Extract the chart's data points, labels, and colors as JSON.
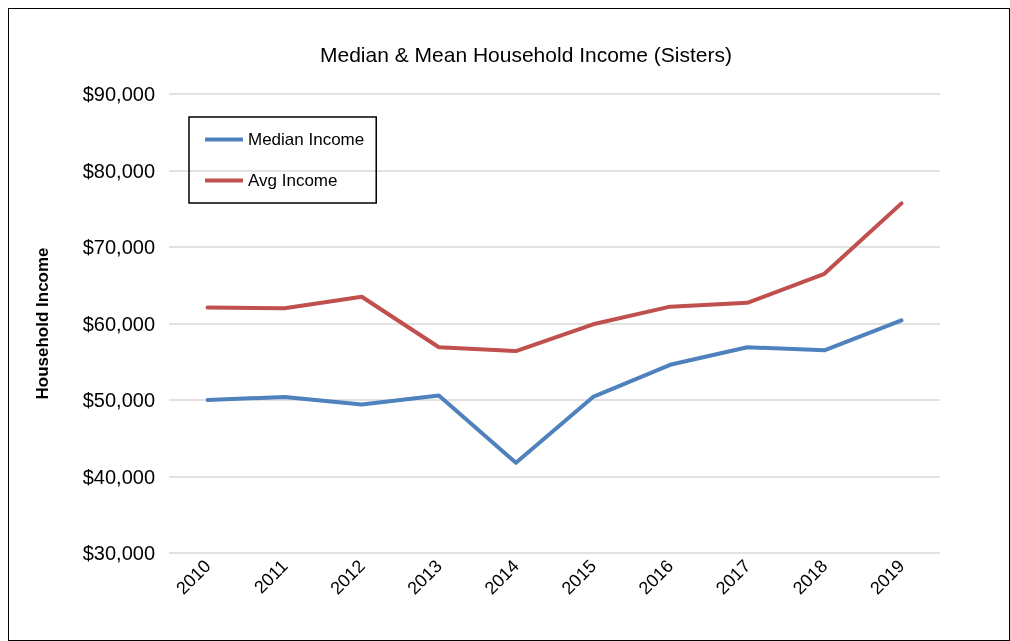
{
  "chart_data": {
    "type": "line",
    "title": "Median & Mean Household Income (Sisters)",
    "ylabel": "Household Income",
    "categories": [
      "2010",
      "2011",
      "2012",
      "2013",
      "2014",
      "2015",
      "2016",
      "2017",
      "2018",
      "2019"
    ],
    "series": [
      {
        "name": "Median Income",
        "color": "#4f81bd",
        "values": [
          50000,
          50400,
          49400,
          50600,
          41800,
          50400,
          54600,
          56900,
          56500,
          60400
        ]
      },
      {
        "name": "Avg Income",
        "color": "#c0504d",
        "values": [
          62100,
          62000,
          63500,
          56900,
          56400,
          59900,
          62200,
          62700,
          66500,
          75700
        ]
      }
    ],
    "ylim": [
      30000,
      90000
    ],
    "yticks": [
      {
        "value": 30000,
        "label": "$30,000"
      },
      {
        "value": 40000,
        "label": "$40,000"
      },
      {
        "value": 50000,
        "label": "$50,000"
      },
      {
        "value": 60000,
        "label": "$60,000"
      },
      {
        "value": 70000,
        "label": "$70,000"
      },
      {
        "value": 80000,
        "label": "$80,000"
      },
      {
        "value": 90000,
        "label": "$90,000"
      }
    ],
    "grid": "y",
    "legend": "top left",
    "marker": "none",
    "line_style": "solid"
  }
}
